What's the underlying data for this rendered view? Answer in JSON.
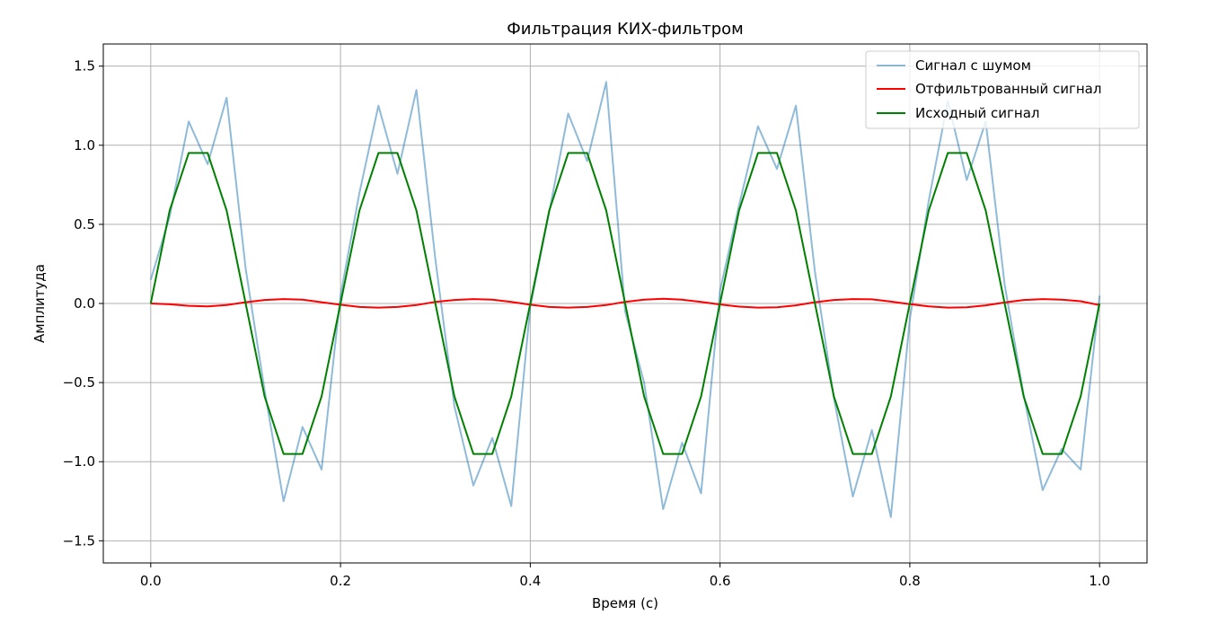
{
  "chart_data": {
    "type": "line",
    "title": "Фильтрация КИХ-фильтром",
    "xlabel": "Время (с)",
    "ylabel": "Амплитуда",
    "xlim": [
      -0.05,
      1.05
    ],
    "ylim": [
      -1.64,
      1.64
    ],
    "grid": true,
    "legend_position": "top-right",
    "x_ticks": [
      0.0,
      0.2,
      0.4,
      0.6,
      0.8,
      1.0
    ],
    "x_tick_labels": [
      "0.0",
      "0.2",
      "0.4",
      "0.6",
      "0.8",
      "1.0"
    ],
    "y_ticks": [
      -1.5,
      -1.0,
      -0.5,
      0.0,
      0.5,
      1.0,
      1.5
    ],
    "y_tick_labels": [
      "−1.5",
      "−1.0",
      "−0.5",
      "0.0",
      "0.5",
      "1.0",
      "1.5"
    ],
    "x": [
      0.0,
      0.02,
      0.04,
      0.06,
      0.08,
      0.1,
      0.12,
      0.14,
      0.16,
      0.18,
      0.2,
      0.22,
      0.24,
      0.26,
      0.28,
      0.3,
      0.32,
      0.34,
      0.36,
      0.38,
      0.4,
      0.42,
      0.44,
      0.46,
      0.48,
      0.5,
      0.52,
      0.54,
      0.56,
      0.58,
      0.6,
      0.62,
      0.64,
      0.66,
      0.68,
      0.7,
      0.72,
      0.74,
      0.76,
      0.78,
      0.8,
      0.82,
      0.84,
      0.86,
      0.88,
      0.9,
      0.92,
      0.94,
      0.96,
      0.98,
      1.0
    ],
    "series": [
      {
        "name": "Сигнал с шумом",
        "color": "#1f77b4",
        "opacity": 0.5,
        "values": [
          0.15,
          0.55,
          1.15,
          0.88,
          1.3,
          0.22,
          -0.55,
          -1.25,
          -0.78,
          -1.05,
          0.05,
          0.7,
          1.25,
          0.82,
          1.35,
          0.28,
          -0.65,
          -1.15,
          -0.85,
          -1.28,
          -0.02,
          0.58,
          1.2,
          0.9,
          1.4,
          -0.05,
          -0.5,
          -1.3,
          -0.88,
          -1.2,
          0.08,
          0.62,
          1.12,
          0.85,
          1.25,
          0.2,
          -0.6,
          -1.22,
          -0.8,
          -1.35,
          -0.1,
          0.65,
          1.28,
          0.78,
          1.15,
          0.12,
          -0.58,
          -1.18,
          -0.92,
          -1.05,
          0.05
        ]
      },
      {
        "name": "Отфильтрованный сигнал",
        "color": "#ff0000",
        "values": [
          0.0,
          -0.005,
          -0.015,
          -0.018,
          -0.01,
          0.008,
          0.022,
          0.028,
          0.024,
          0.008,
          -0.008,
          -0.022,
          -0.026,
          -0.022,
          -0.01,
          0.01,
          0.022,
          0.028,
          0.024,
          0.01,
          -0.008,
          -0.022,
          -0.026,
          -0.022,
          -0.01,
          0.01,
          0.024,
          0.03,
          0.024,
          0.01,
          -0.006,
          -0.02,
          -0.026,
          -0.024,
          -0.012,
          0.008,
          0.022,
          0.028,
          0.026,
          0.012,
          -0.004,
          -0.018,
          -0.026,
          -0.024,
          -0.012,
          0.006,
          0.022,
          0.028,
          0.024,
          0.014,
          -0.01
        ]
      },
      {
        "name": "Исходный сигнал",
        "color": "#008000",
        "values": [
          0.0,
          0.5878,
          0.9511,
          0.9511,
          0.5878,
          0.0,
          -0.5878,
          -0.9511,
          -0.9511,
          -0.5878,
          0.0,
          0.5878,
          0.9511,
          0.9511,
          0.5878,
          0.0,
          -0.5878,
          -0.9511,
          -0.9511,
          -0.5878,
          0.0,
          0.5878,
          0.9511,
          0.9511,
          0.5878,
          0.0,
          -0.5878,
          -0.9511,
          -0.9511,
          -0.5878,
          0.0,
          0.5878,
          0.9511,
          0.9511,
          0.5878,
          0.0,
          -0.5878,
          -0.9511,
          -0.9511,
          -0.5878,
          0.0,
          0.5878,
          0.9511,
          0.9511,
          0.5878,
          0.0,
          -0.5878,
          -0.9511,
          -0.9511,
          -0.5878,
          0.0
        ]
      }
    ]
  }
}
